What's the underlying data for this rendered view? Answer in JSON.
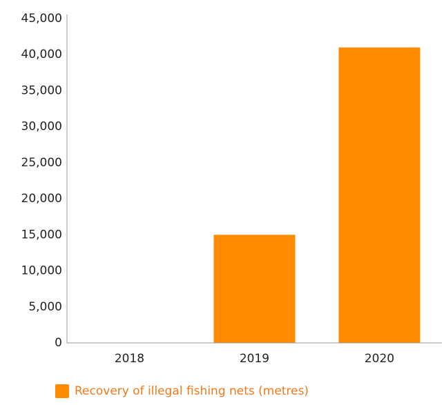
{
  "chart_data": {
    "type": "bar",
    "categories": [
      "2018",
      "2019",
      "2020"
    ],
    "series": [
      {
        "name": "Recovery of illegal fishing nets (metres)",
        "values": [
          0,
          15000,
          41000
        ],
        "color": "#FF8C00"
      }
    ],
    "ylim": [
      0,
      45000
    ],
    "yticks": [
      0,
      5000,
      10000,
      15000,
      20000,
      25000,
      30000,
      35000,
      40000,
      45000
    ],
    "ytick_labels": [
      "0",
      "5,000",
      "10,000",
      "15,000",
      "20,000",
      "25,000",
      "30,000",
      "35,000",
      "40,000",
      "45,000"
    ],
    "grid": false,
    "legend_position": "bottom-left",
    "axis_color": "#999999",
    "legend_text_color": "#F07A1A"
  }
}
